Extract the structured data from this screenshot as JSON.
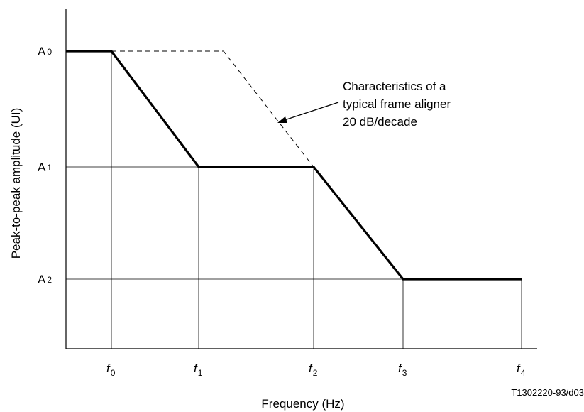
{
  "chart_data": {
    "type": "line",
    "xlabel": "Frequency (Hz)",
    "ylabel": "Peak-to-peak amplitude (UI)",
    "x_ticks": [
      {
        "main": "f",
        "sub": "0"
      },
      {
        "main": "f",
        "sub": "1"
      },
      {
        "main": "f",
        "sub": "2"
      },
      {
        "main": "f",
        "sub": "3"
      },
      {
        "main": "f",
        "sub": "4"
      }
    ],
    "y_ticks": [
      {
        "main": "A",
        "sub": "0"
      },
      {
        "main": "A",
        "sub": "1"
      },
      {
        "main": "A",
        "sub": "2"
      }
    ],
    "series": [
      {
        "style": "solid-bold",
        "points": [
          {
            "x": "x_start",
            "y": "A0"
          },
          {
            "x": "f0",
            "y": "A0"
          },
          {
            "x": "f1",
            "y": "A1"
          },
          {
            "x": "f2",
            "y": "A1"
          },
          {
            "x": "f3",
            "y": "A2"
          },
          {
            "x": "f4",
            "y": "A2"
          }
        ]
      },
      {
        "style": "dashed",
        "points": [
          {
            "x": "f0",
            "y": "A0"
          },
          {
            "x": "f0_to_f1_mid",
            "y": "A0"
          },
          {
            "x": "f2",
            "y": "A1"
          }
        ]
      }
    ],
    "annotation": {
      "lines": [
        "Characteristics of a",
        "typical frame aligner",
        "20 dB/decade"
      ]
    },
    "reference": "T1302220-93/d03",
    "grid": true,
    "colors": {
      "line": "#000000",
      "grid": "#000000"
    }
  }
}
